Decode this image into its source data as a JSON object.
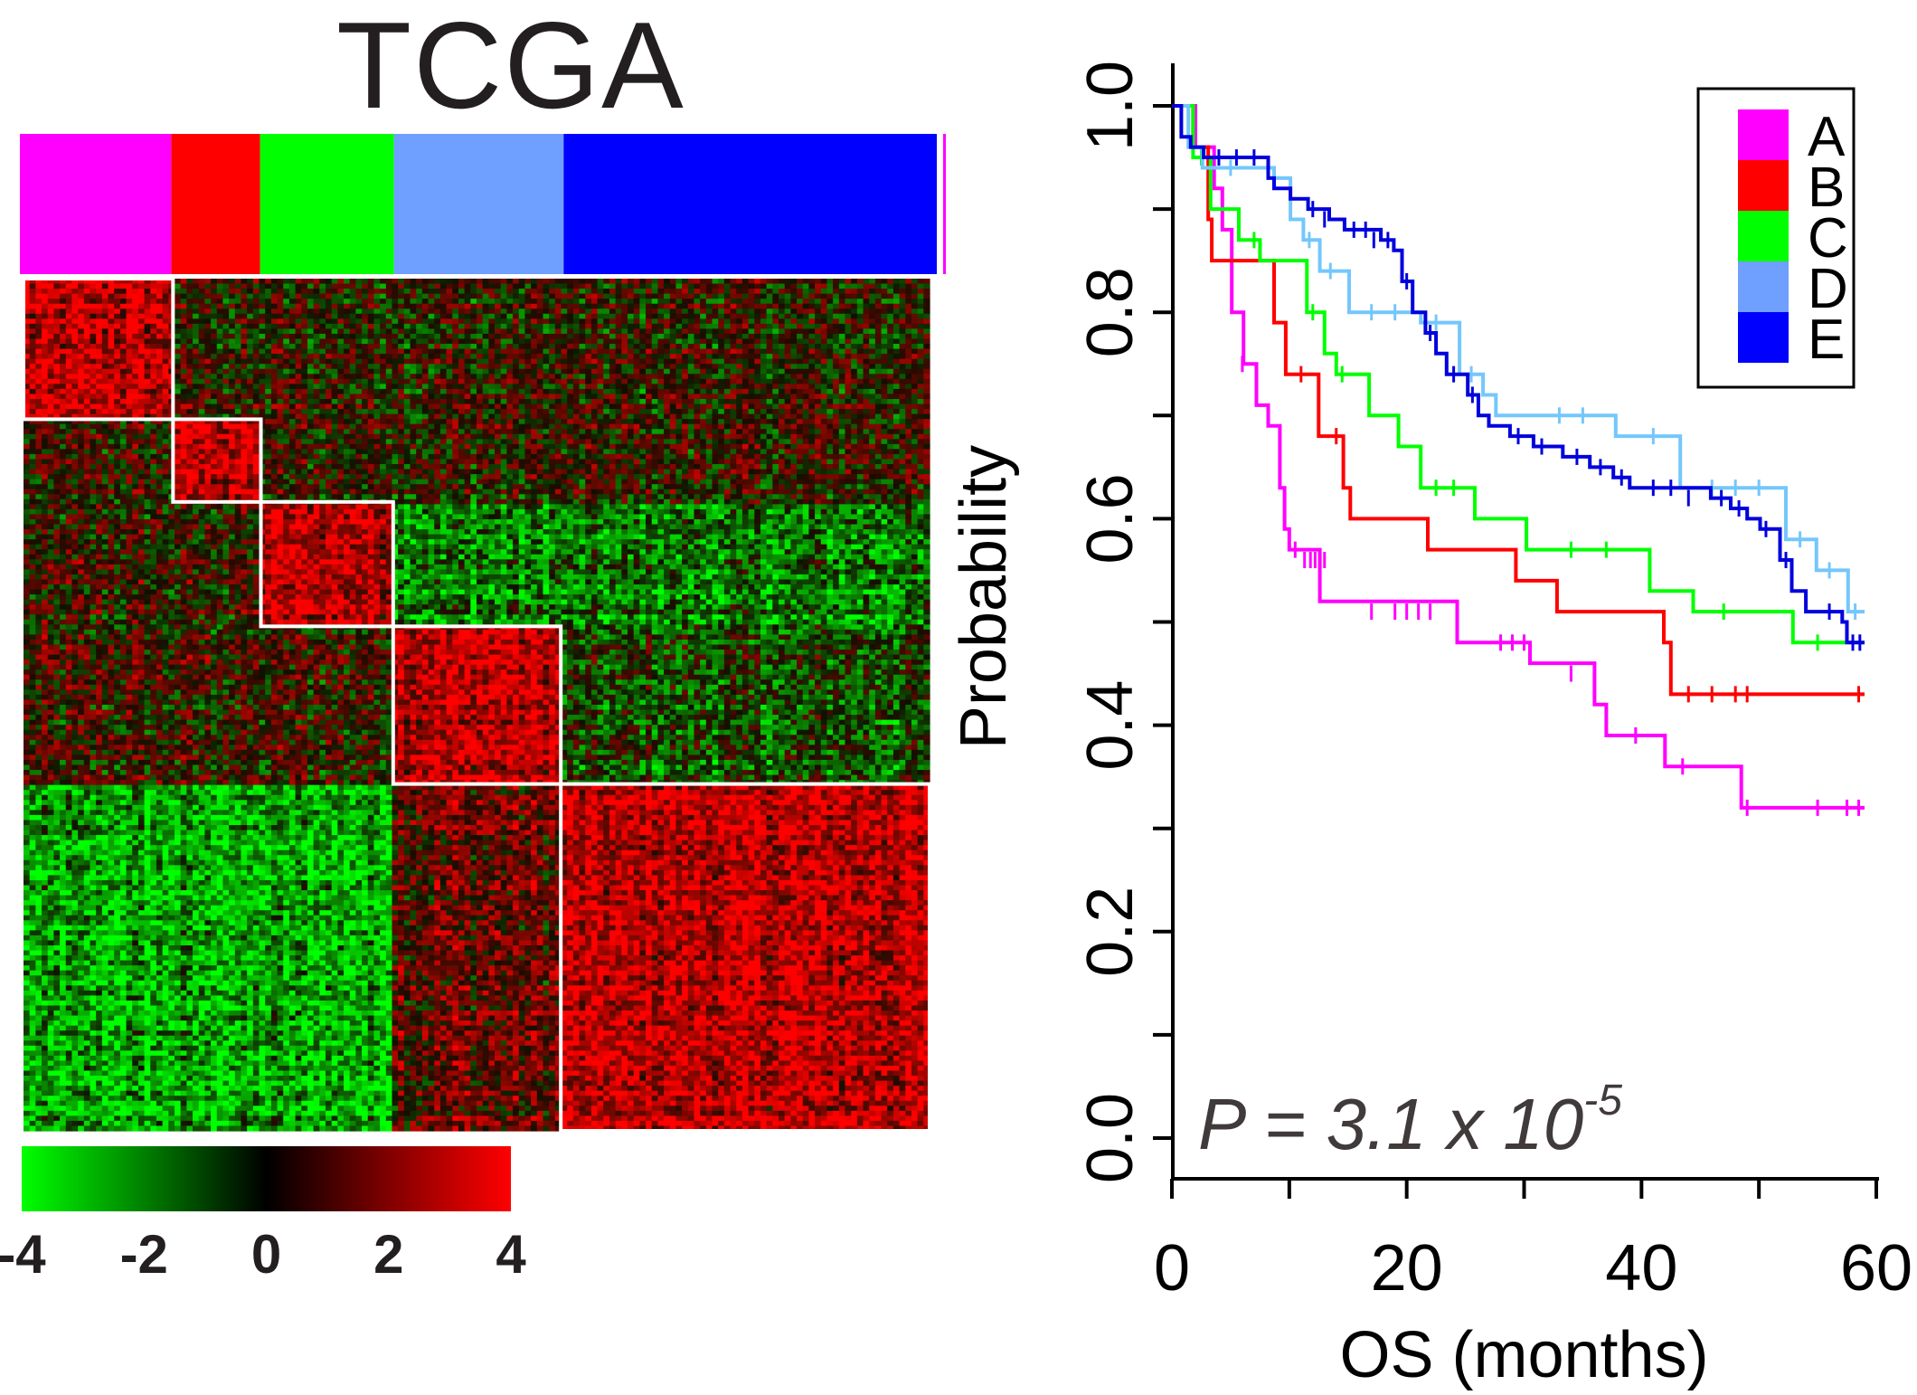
{
  "heatmap": {
    "title": "TCGA",
    "clusters": [
      {
        "name": "A",
        "color": "#ff00ff",
        "size": 0.165
      },
      {
        "name": "B",
        "color": "#ff0000",
        "size": 0.097
      },
      {
        "name": "C",
        "color": "#00ff00",
        "size": 0.146
      },
      {
        "name": "D",
        "color": "#6f9fff",
        "size": 0.185
      },
      {
        "name": "E",
        "color": "#0000ff",
        "size": 0.407
      }
    ],
    "colorbar": {
      "ticks": [
        "-4",
        "-2",
        "0",
        "2",
        "4"
      ],
      "values": [
        -4,
        -2,
        0,
        2,
        4
      ],
      "range": [
        -4,
        4
      ],
      "colors": [
        "#00ff00",
        "#000000",
        "#ff0000"
      ]
    }
  },
  "chart_data": {
    "type": "line",
    "subtype": "kaplan-meier",
    "xlabel": "OS (months)",
    "ylabel": "Probability",
    "xlim": [
      0,
      60
    ],
    "ylim": [
      0,
      1
    ],
    "xticks": [
      "0",
      "20",
      "40",
      "60"
    ],
    "yticks": [
      "0.0",
      "0.2",
      "0.4",
      "0.6",
      "0.8",
      "1.0"
    ],
    "legend_position": "top-right",
    "annotation": {
      "text": "P = 3.1 x 10",
      "superscript": "-5"
    },
    "series": [
      {
        "name": "A",
        "color": "#ff00ff",
        "steps": [
          [
            0,
            1.0
          ],
          [
            2,
            0.96
          ],
          [
            3.6,
            0.92
          ],
          [
            4.3,
            0.88
          ],
          [
            5.1,
            0.8
          ],
          [
            6.1,
            0.75
          ],
          [
            7.2,
            0.71
          ],
          [
            8.2,
            0.69
          ],
          [
            9.2,
            0.63
          ],
          [
            9.6,
            0.59
          ],
          [
            10,
            0.57
          ],
          [
            12.6,
            0.52
          ],
          [
            24.3,
            0.48
          ],
          [
            30.5,
            0.46
          ],
          [
            36,
            0.42
          ],
          [
            37,
            0.39
          ],
          [
            42,
            0.36
          ],
          [
            48.5,
            0.32
          ],
          [
            59,
            0.32
          ]
        ],
        "censor": [
          [
            6,
            0.75
          ],
          [
            10.5,
            0.57
          ],
          [
            11.3,
            0.56
          ],
          [
            11.8,
            0.56
          ],
          [
            12.2,
            0.56
          ],
          [
            13,
            0.56
          ],
          [
            17,
            0.51
          ],
          [
            19,
            0.51
          ],
          [
            20,
            0.51
          ],
          [
            21,
            0.51
          ],
          [
            22,
            0.51
          ],
          [
            28,
            0.48
          ],
          [
            29,
            0.48
          ],
          [
            30,
            0.48
          ],
          [
            34,
            0.45
          ],
          [
            39.5,
            0.39
          ],
          [
            43.5,
            0.36
          ],
          [
            49,
            0.32
          ],
          [
            55,
            0.32
          ],
          [
            57.5,
            0.32
          ],
          [
            58.5,
            0.32
          ]
        ]
      },
      {
        "name": "B",
        "color": "#ff0000",
        "steps": [
          [
            0,
            1.0
          ],
          [
            1.8,
            0.96
          ],
          [
            3.1,
            0.89
          ],
          [
            3.4,
            0.85
          ],
          [
            8.7,
            0.79
          ],
          [
            9.7,
            0.74
          ],
          [
            12.5,
            0.68
          ],
          [
            14.6,
            0.63
          ],
          [
            15.2,
            0.6
          ],
          [
            21.8,
            0.57
          ],
          [
            29.3,
            0.54
          ],
          [
            32.8,
            0.51
          ],
          [
            41.9,
            0.48
          ],
          [
            42.5,
            0.43
          ],
          [
            59,
            0.43
          ]
        ],
        "censor": [
          [
            11,
            0.74
          ],
          [
            14,
            0.68
          ],
          [
            44,
            0.43
          ],
          [
            46,
            0.43
          ],
          [
            48,
            0.43
          ],
          [
            49,
            0.43
          ],
          [
            58.5,
            0.43
          ]
        ]
      },
      {
        "name": "C",
        "color": "#00ff00",
        "steps": [
          [
            0,
            1.0
          ],
          [
            1.8,
            0.95
          ],
          [
            3.3,
            0.9
          ],
          [
            5.7,
            0.87
          ],
          [
            7.5,
            0.85
          ],
          [
            11.5,
            0.8
          ],
          [
            13,
            0.76
          ],
          [
            14,
            0.74
          ],
          [
            16.8,
            0.7
          ],
          [
            19.3,
            0.67
          ],
          [
            21.2,
            0.63
          ],
          [
            25.8,
            0.6
          ],
          [
            30.2,
            0.57
          ],
          [
            40.7,
            0.53
          ],
          [
            44.4,
            0.51
          ],
          [
            52.9,
            0.48
          ],
          [
            59,
            0.48
          ]
        ],
        "censor": [
          [
            2.5,
            0.95
          ],
          [
            7,
            0.87
          ],
          [
            12,
            0.8
          ],
          [
            14.5,
            0.74
          ],
          [
            22.5,
            0.63
          ],
          [
            24,
            0.63
          ],
          [
            34,
            0.57
          ],
          [
            37,
            0.57
          ],
          [
            47,
            0.51
          ],
          [
            55,
            0.48
          ]
        ]
      },
      {
        "name": "D",
        "color": "#74c7fb",
        "steps": [
          [
            0,
            1.0
          ],
          [
            1.4,
            0.96
          ],
          [
            2.6,
            0.94
          ],
          [
            8.7,
            0.93
          ],
          [
            10.1,
            0.89
          ],
          [
            11.2,
            0.87
          ],
          [
            12.6,
            0.84
          ],
          [
            15.1,
            0.8
          ],
          [
            21.2,
            0.79
          ],
          [
            24.5,
            0.74
          ],
          [
            26.5,
            0.72
          ],
          [
            27.6,
            0.7
          ],
          [
            37.8,
            0.68
          ],
          [
            43.3,
            0.63
          ],
          [
            52.3,
            0.58
          ],
          [
            54.9,
            0.55
          ],
          [
            57.6,
            0.51
          ],
          [
            59,
            0.51
          ]
        ],
        "censor": [
          [
            5,
            0.94
          ],
          [
            11.7,
            0.87
          ],
          [
            13.5,
            0.84
          ],
          [
            17,
            0.8
          ],
          [
            19,
            0.8
          ],
          [
            22.5,
            0.79
          ],
          [
            25.5,
            0.74
          ],
          [
            33,
            0.7
          ],
          [
            35,
            0.7
          ],
          [
            41,
            0.68
          ],
          [
            46,
            0.63
          ],
          [
            48,
            0.63
          ],
          [
            50,
            0.63
          ],
          [
            53.5,
            0.58
          ],
          [
            56,
            0.55
          ],
          [
            58.2,
            0.51
          ]
        ]
      },
      {
        "name": "E",
        "color": "#0000dd",
        "steps": [
          [
            0,
            1.0
          ],
          [
            0.8,
            0.97
          ],
          [
            1.6,
            0.96
          ],
          [
            2.7,
            0.95
          ],
          [
            8.2,
            0.93
          ],
          [
            8.7,
            0.92
          ],
          [
            10.1,
            0.91
          ],
          [
            11.6,
            0.9
          ],
          [
            13.4,
            0.89
          ],
          [
            14.7,
            0.88
          ],
          [
            17.8,
            0.87
          ],
          [
            18.9,
            0.86
          ],
          [
            19.6,
            0.83
          ],
          [
            20.5,
            0.8
          ],
          [
            21.6,
            0.78
          ],
          [
            22.5,
            0.76
          ],
          [
            23.4,
            0.74
          ],
          [
            25.2,
            0.72
          ],
          [
            26.1,
            0.7
          ],
          [
            27,
            0.69
          ],
          [
            28.8,
            0.68
          ],
          [
            30.8,
            0.67
          ],
          [
            33.3,
            0.66
          ],
          [
            35.6,
            0.65
          ],
          [
            37.6,
            0.64
          ],
          [
            39,
            0.63
          ],
          [
            40.5,
            0.63
          ],
          [
            45.9,
            0.62
          ],
          [
            47.6,
            0.61
          ],
          [
            49,
            0.6
          ],
          [
            50.1,
            0.59
          ],
          [
            51.8,
            0.56
          ],
          [
            52.8,
            0.53
          ],
          [
            54,
            0.51
          ],
          [
            57.1,
            0.5
          ],
          [
            57.5,
            0.48
          ],
          [
            59,
            0.48
          ]
        ],
        "censor": [
          [
            4,
            0.95
          ],
          [
            5.5,
            0.95
          ],
          [
            7,
            0.95
          ],
          [
            12,
            0.9
          ],
          [
            13,
            0.89
          ],
          [
            15.5,
            0.88
          ],
          [
            16.5,
            0.88
          ],
          [
            17.2,
            0.87
          ],
          [
            18.4,
            0.87
          ],
          [
            20,
            0.83
          ],
          [
            22,
            0.78
          ],
          [
            24,
            0.74
          ],
          [
            25.6,
            0.72
          ],
          [
            29.5,
            0.68
          ],
          [
            31.5,
            0.67
          ],
          [
            34.5,
            0.66
          ],
          [
            36.5,
            0.65
          ],
          [
            38.3,
            0.64
          ],
          [
            41,
            0.63
          ],
          [
            42.5,
            0.63
          ],
          [
            44,
            0.62
          ],
          [
            46.8,
            0.62
          ],
          [
            48.3,
            0.61
          ],
          [
            50.6,
            0.59
          ],
          [
            52.3,
            0.56
          ],
          [
            56,
            0.51
          ],
          [
            58,
            0.48
          ],
          [
            58.6,
            0.48
          ]
        ]
      }
    ]
  }
}
